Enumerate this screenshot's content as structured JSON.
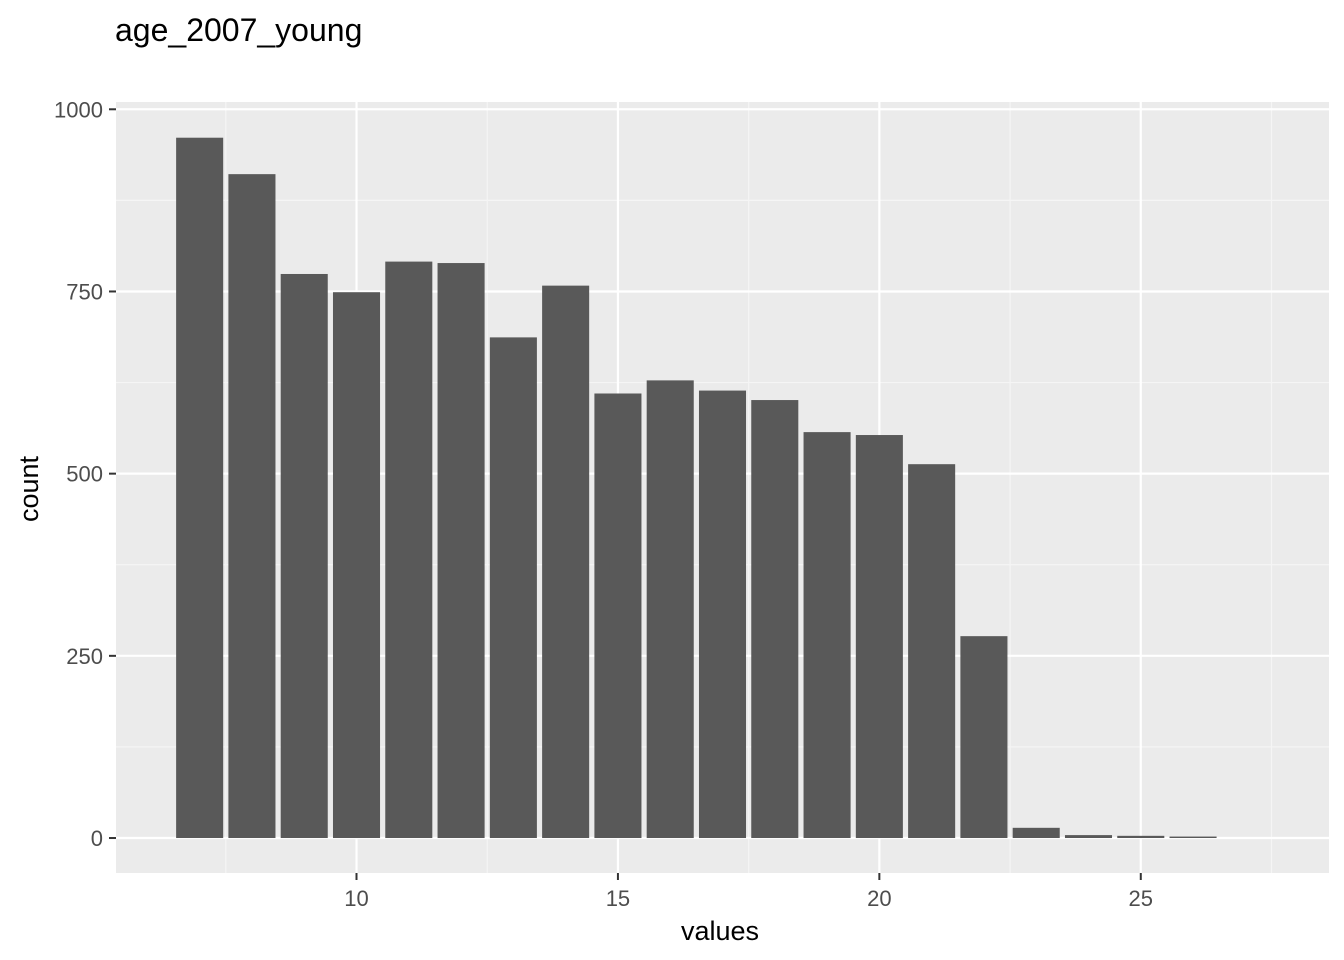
{
  "chart_data": {
    "type": "bar",
    "title": "age_2007_young",
    "xlabel": "values",
    "ylabel": "count",
    "x": [
      7,
      8,
      9,
      10,
      11,
      12,
      13,
      14,
      15,
      16,
      17,
      18,
      19,
      20,
      21,
      22,
      23,
      24,
      25,
      26
    ],
    "values": [
      961,
      911,
      774,
      749,
      791,
      789,
      687,
      758,
      610,
      628,
      614,
      601,
      557,
      553,
      513,
      277,
      14,
      4,
      3,
      2
    ],
    "xlim": [
      5.4,
      28.6
    ],
    "ylim": [
      -48,
      1010
    ],
    "x_ticks": [
      10,
      15,
      20,
      25
    ],
    "y_ticks": [
      0,
      250,
      500,
      750,
      1000
    ],
    "grid": true,
    "colors": {
      "bar": "#595959",
      "panel": "#ebebeb",
      "grid_major": "#ffffff",
      "grid_minor": "#f5f5f5",
      "tick_text": "#4d4d4d"
    }
  }
}
